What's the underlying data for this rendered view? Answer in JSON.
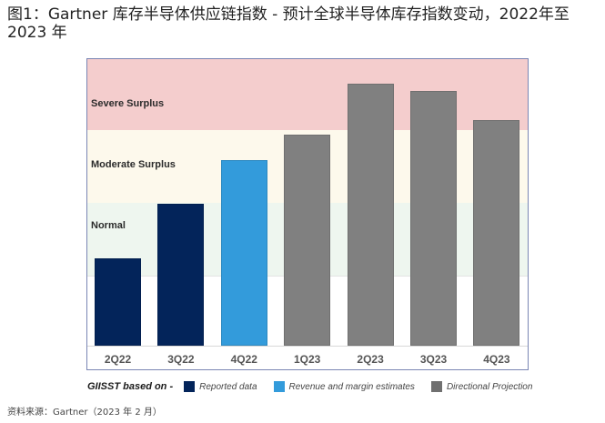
{
  "title": "图1：Gartner 库存半导体供应链指数 - 预计全球半导体库存指数变动，2022年至 2023 年",
  "source": "资料来源：Gartner（2023 年 2 月）",
  "colors": {
    "reported": "#03245a",
    "estimates": "#339bdb",
    "projection": "#808080",
    "band_severe": "#f4cdcd",
    "band_moderate": "#fdf9ec",
    "band_normal": "#eef6ef",
    "frame": "#7a86b4"
  },
  "legend": {
    "heading": "GIISST based on -",
    "items": [
      {
        "label": "Reported data",
        "color": "#03245a"
      },
      {
        "label": "Revenue and margin estimates",
        "color": "#339bdb"
      },
      {
        "label": "Directional Projection",
        "color": "#707070"
      }
    ]
  },
  "chart_data": {
    "type": "bar",
    "title": "Gartner 库存半导体供应链指数 - 预计全球半导体库存指数变动，2022年至 2023 年",
    "xlabel": "",
    "ylabel": "",
    "categories": [
      "2Q22",
      "3Q22",
      "4Q22",
      "1Q23",
      "2Q23",
      "3Q23",
      "4Q23"
    ],
    "values": [
      1.2,
      1.95,
      2.55,
      2.9,
      3.6,
      3.5,
      3.1
    ],
    "bar_kind": [
      "Reported data",
      "Reported data",
      "Revenue and margin estimates",
      "Directional Projection",
      "Directional Projection",
      "Directional Projection",
      "Directional Projection"
    ],
    "zones": [
      {
        "label": "Normal",
        "range": [
          1,
          2
        ]
      },
      {
        "label": "Moderate Surplus",
        "range": [
          2,
          3
        ]
      },
      {
        "label": "Severe Surplus",
        "range": [
          3,
          4
        ]
      }
    ],
    "ylim": [
      0,
      4
    ],
    "grid": false,
    "legend_position": "bottom",
    "note": "Y-axis unlabeled; values are relative heights on a 0–4 scale where zone bands are 1 unit each"
  }
}
